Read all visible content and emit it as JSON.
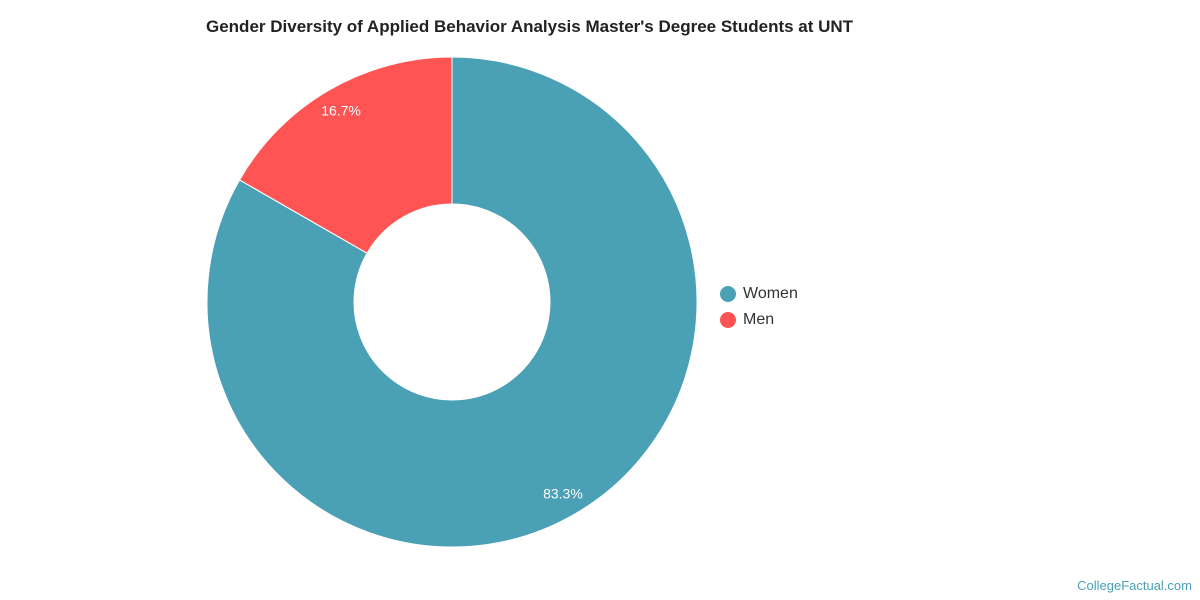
{
  "chart_data": {
    "type": "pie",
    "donut": true,
    "title": "Gender Diversity of Applied Behavior Analysis Master's Degree Students at UNT",
    "categories": [
      "Women",
      "Men"
    ],
    "values": [
      83.3,
      16.7
    ],
    "labels": [
      "83.3%",
      "16.7%"
    ],
    "colors": [
      "#4aa0b5",
      "#ff5454"
    ],
    "legend_position": "right"
  },
  "watermark": "CollegeFactual.com"
}
